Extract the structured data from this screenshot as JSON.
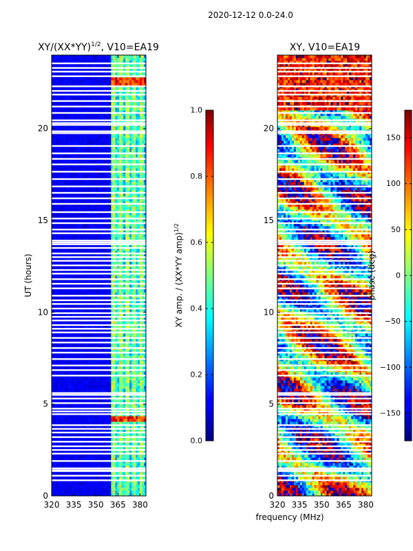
{
  "figure": {
    "suptitle": "2020-12-12 0.0-24.0",
    "xlabel": "frequency (MHz)"
  },
  "chart_data": [
    {
      "type": "heatmap",
      "title": "XY/(XX*YY)",
      "title_exp": "1/2",
      "title_suffix": ", V10=EA19",
      "xlabel": "",
      "ylabel": "UT (hours)",
      "xlim": [
        320,
        384
      ],
      "ylim": [
        0,
        24
      ],
      "xticks": [
        320,
        335,
        350,
        365,
        380
      ],
      "yticks": [
        0,
        5,
        10,
        15,
        20
      ],
      "colorbar": {
        "label": "XY amp. / (XX*YY amp)",
        "label_exp": "1/2",
        "range": [
          0.0,
          1.0
        ],
        "ticks": [
          "0.0",
          "0.2",
          "0.4",
          "0.6",
          "0.8",
          "1.0"
        ],
        "colormap": "jet"
      },
      "features": {
        "low_band_MHz": [
          320,
          361
        ],
        "low_band_level": 0.08,
        "high_band_MHz": [
          361,
          384
        ],
        "high_band_level": 0.35,
        "flares_UT": [
          4.2,
          22.6
        ]
      }
    },
    {
      "type": "heatmap",
      "title": "XY, V10=EA19",
      "xlabel": "",
      "ylabel": "",
      "xlim": [
        320,
        384
      ],
      "ylim": [
        0,
        24
      ],
      "xticks": [
        320,
        335,
        350,
        365,
        380
      ],
      "yticks": [
        0,
        5,
        10,
        15,
        20
      ],
      "colorbar": {
        "label": "phase (deg)",
        "range": [
          -180,
          180
        ],
        "ticks": [
          "−150",
          "−100",
          "−50",
          "0",
          "50",
          "100",
          "150"
        ],
        "tick_values": [
          -150,
          -100,
          -50,
          0,
          50,
          100,
          150
        ],
        "colormap": "jet"
      }
    }
  ],
  "gaps_UT": [
    0.85,
    1.1,
    1.35,
    1.4,
    1.5,
    1.9,
    2.3,
    2.5,
    2.7,
    2.95,
    3.2,
    3.45,
    3.65,
    3.85,
    4.45,
    4.6,
    4.75,
    5.05,
    5.3,
    5.5,
    5.6,
    6.55,
    6.85,
    7.1,
    7.45,
    7.8,
    8.05,
    8.35,
    8.6,
    8.9,
    9.1,
    9.3,
    9.55,
    9.75,
    9.95,
    10.2,
    10.45,
    10.65,
    10.9,
    11.3,
    11.55,
    11.8,
    12.1,
    12.3,
    12.55,
    12.8,
    13.0,
    13.2,
    13.5,
    13.7,
    13.8,
    13.9,
    14.3,
    14.5,
    14.85,
    15.1,
    15.45,
    15.9,
    16.2,
    16.5,
    16.85,
    17.25,
    17.65,
    18.05,
    18.35,
    18.65,
    19.05,
    19.75,
    19.85,
    20.2,
    20.3,
    20.45,
    20.85,
    21.2,
    21.5,
    21.85,
    22.05,
    22.3,
    22.85,
    23.1,
    23.3,
    23.55
  ]
}
